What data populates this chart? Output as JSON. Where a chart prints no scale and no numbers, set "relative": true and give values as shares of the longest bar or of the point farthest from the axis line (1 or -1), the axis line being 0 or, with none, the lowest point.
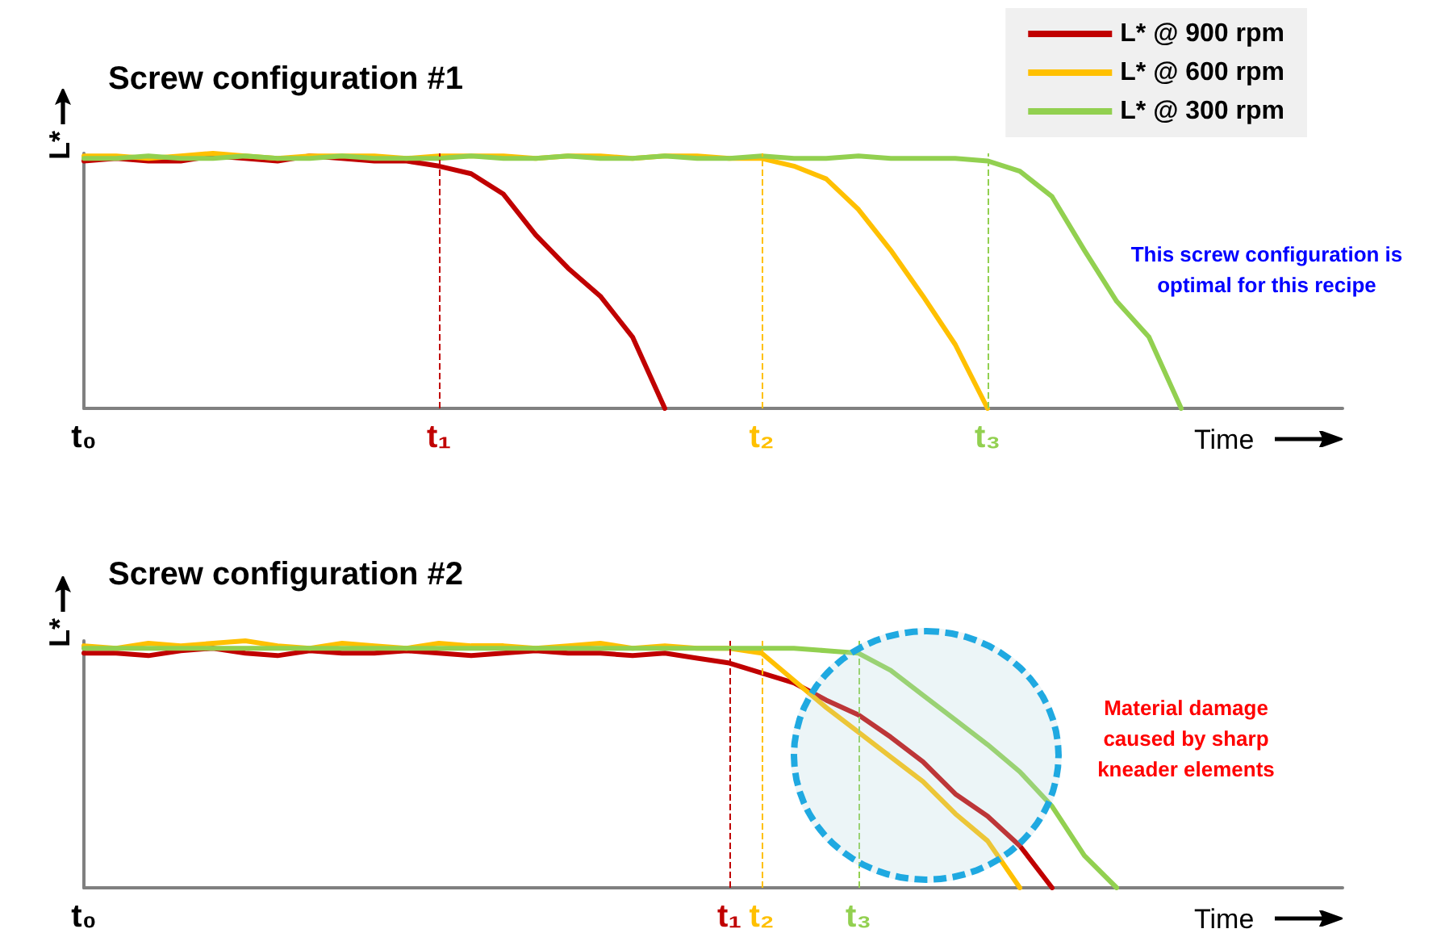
{
  "chart_data": [
    {
      "type": "line",
      "title": "Screw configuration #1",
      "xlabel": "Time",
      "ylabel": "L*",
      "relative": true,
      "legend": "top right",
      "grid": false,
      "marker": "none",
      "line_style": "solid",
      "categories": [
        "t₀",
        null,
        null,
        null,
        null,
        null,
        null,
        null,
        null,
        null,
        null,
        "t₁",
        null,
        null,
        null,
        null,
        null,
        null,
        null,
        null,
        null,
        "t₂",
        null,
        null,
        null,
        null,
        null,
        null,
        "t₃",
        null,
        null,
        null,
        null,
        null,
        null,
        null,
        null,
        null,
        null,
        null
      ],
      "annotations": [
        "This screw configuration is optimal for this recipe"
      ],
      "ref_lines": [
        {
          "axis": "x",
          "value": "t₁",
          "color": "#c00000",
          "line_style": "dashed"
        },
        {
          "axis": "x",
          "value": "t₂",
          "color": "#ffc000",
          "line_style": "dashed"
        },
        {
          "axis": "x",
          "value": "t₃",
          "color": "#92d050",
          "line_style": "dashed"
        }
      ],
      "series": [
        {
          "name": "L* @ 900 rpm",
          "color": "#c00000",
          "values": [
            0.97,
            0.98,
            0.97,
            0.97,
            0.99,
            0.98,
            0.97,
            0.99,
            0.98,
            0.97,
            0.97,
            0.95,
            0.92,
            0.84,
            0.68,
            0.55,
            0.44,
            0.28,
            0,
            null,
            null,
            null,
            null,
            null,
            null,
            null,
            null,
            null,
            null,
            null,
            null,
            null,
            null,
            null,
            null,
            null,
            null,
            null,
            null,
            null
          ]
        },
        {
          "name": "L* @ 600 rpm",
          "color": "#ffc000",
          "values": [
            0.99,
            0.99,
            0.98,
            0.99,
            1.0,
            0.99,
            0.98,
            0.99,
            0.99,
            0.99,
            0.98,
            0.99,
            0.99,
            0.99,
            0.98,
            0.99,
            0.99,
            0.98,
            0.99,
            0.99,
            0.98,
            0.98,
            0.95,
            0.9,
            0.78,
            0.62,
            0.44,
            0.25,
            0,
            null,
            null,
            null,
            null,
            null,
            null,
            null,
            null,
            null,
            null,
            null
          ]
        },
        {
          "name": "L* @ 300 rpm",
          "color": "#92d050",
          "values": [
            0.98,
            0.98,
            0.99,
            0.98,
            0.98,
            0.99,
            0.98,
            0.98,
            0.99,
            0.98,
            0.98,
            0.98,
            0.99,
            0.98,
            0.98,
            0.99,
            0.98,
            0.98,
            0.99,
            0.98,
            0.98,
            0.99,
            0.98,
            0.98,
            0.99,
            0.98,
            0.98,
            0.98,
            0.97,
            0.93,
            0.83,
            0.62,
            0.42,
            0.28,
            0,
            null,
            null,
            null,
            null,
            null
          ]
        }
      ]
    },
    {
      "type": "line",
      "title": "Screw configuration #2",
      "xlabel": "Time",
      "ylabel": "L*",
      "relative": true,
      "grid": false,
      "marker": "none",
      "line_style": "solid",
      "categories": [
        "t₀",
        null,
        null,
        null,
        null,
        null,
        null,
        null,
        null,
        null,
        null,
        null,
        null,
        null,
        null,
        null,
        null,
        null,
        null,
        null,
        "t₁",
        "t₂",
        null,
        null,
        "t₃",
        null,
        null,
        null,
        null,
        null,
        null,
        null,
        null,
        null,
        null,
        null,
        null,
        null,
        null,
        null
      ],
      "annotations": [
        "Material damage caused by sharp kneader elements"
      ],
      "ref_lines": [
        {
          "axis": "x",
          "value": "t₁",
          "color": "#c00000",
          "line_style": "dashed"
        },
        {
          "axis": "x",
          "value": "t₂",
          "color": "#ffc000",
          "line_style": "dashed"
        },
        {
          "axis": "x",
          "value": "t₃",
          "color": "#92d050",
          "line_style": "dashed"
        }
      ],
      "series": [
        {
          "color": "#c00000",
          "values": [
            0.95,
            0.95,
            0.94,
            0.96,
            0.97,
            0.95,
            0.94,
            0.96,
            0.95,
            0.95,
            0.96,
            0.95,
            0.94,
            0.95,
            0.96,
            0.95,
            0.95,
            0.94,
            0.95,
            0.93,
            0.91,
            0.87,
            0.83,
            0.76,
            0.7,
            0.61,
            0.51,
            0.38,
            0.29,
            0.17,
            0,
            null,
            null,
            null,
            null,
            null,
            null,
            null,
            null,
            null
          ]
        },
        {
          "color": "#ffc000",
          "values": [
            0.98,
            0.97,
            0.99,
            0.98,
            0.99,
            1.0,
            0.98,
            0.97,
            0.99,
            0.98,
            0.97,
            0.99,
            0.98,
            0.98,
            0.97,
            0.98,
            0.99,
            0.97,
            0.98,
            0.97,
            0.97,
            0.95,
            0.84,
            0.73,
            0.63,
            0.53,
            0.43,
            0.3,
            0.19,
            0,
            null,
            null,
            null,
            null,
            null,
            null,
            null,
            null,
            null,
            null
          ]
        },
        {
          "color": "#92d050",
          "values": [
            0.97,
            0.97,
            0.97,
            0.97,
            0.97,
            0.97,
            0.97,
            0.97,
            0.97,
            0.97,
            0.97,
            0.97,
            0.97,
            0.97,
            0.97,
            0.97,
            0.97,
            0.97,
            0.97,
            0.97,
            0.97,
            0.97,
            0.97,
            0.96,
            0.95,
            0.88,
            0.78,
            0.68,
            0.58,
            0.47,
            0.33,
            0.13,
            0,
            null,
            null,
            null,
            null,
            null,
            null,
            null
          ]
        }
      ]
    }
  ]
}
